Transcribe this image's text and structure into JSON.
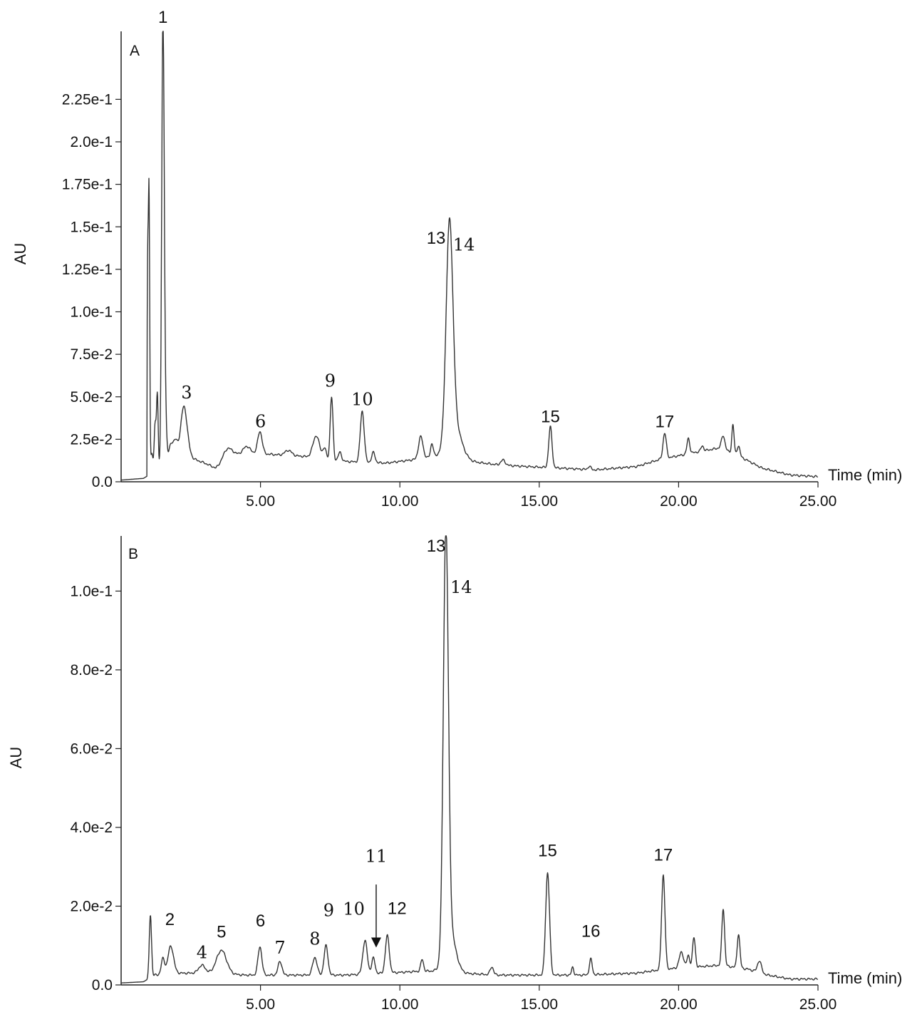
{
  "chart_data": [
    {
      "type": "line",
      "panel_label": "A",
      "ylabel": "AU",
      "xlabel": "Time (min)",
      "xlim": [
        0,
        25
      ],
      "ylim": [
        0,
        0.265
      ],
      "x_ticks": [
        5,
        10,
        15,
        20,
        25
      ],
      "x_tick_labels": [
        "5.00",
        "10.00",
        "15.00",
        "20.00",
        "25.00"
      ],
      "y_ticks": [
        0,
        0.025,
        0.05,
        0.075,
        0.1,
        0.125,
        0.15,
        0.175,
        0.2,
        0.225
      ],
      "y_tick_labels": [
        "0.0",
        "2.5e-2",
        "5.0e-2",
        "7.5e-2",
        "1.0e-1",
        "1.25e-1",
        "1.5e-1",
        "1.75e-1",
        "2.0e-1",
        "2.25e-1"
      ],
      "baseline": [
        [
          0,
          0.001
        ],
        [
          0.8,
          0.002
        ],
        [
          1.0,
          0.004
        ],
        [
          2.5,
          0.014
        ],
        [
          3.0,
          0.011
        ],
        [
          3.4,
          0.008
        ],
        [
          4.0,
          0.016
        ],
        [
          4.6,
          0.017
        ],
        [
          5.5,
          0.016
        ],
        [
          6.5,
          0.015
        ],
        [
          8.0,
          0.012
        ],
        [
          9.5,
          0.011
        ],
        [
          10.5,
          0.013
        ],
        [
          11.4,
          0.015
        ],
        [
          12.5,
          0.012
        ],
        [
          13.5,
          0.01
        ],
        [
          14.5,
          0.009
        ],
        [
          15.8,
          0.008
        ],
        [
          17.0,
          0.007
        ],
        [
          18.5,
          0.009
        ],
        [
          19.3,
          0.013
        ],
        [
          20.5,
          0.017
        ],
        [
          21.5,
          0.02
        ],
        [
          22.3,
          0.014
        ],
        [
          23.0,
          0.008
        ],
        [
          24.0,
          0.004
        ],
        [
          25.0,
          0.003
        ]
      ],
      "peaks": [
        {
          "t": 0.95,
          "h": 0.11,
          "w": 0.02
        },
        {
          "t": 1.0,
          "h": 0.168,
          "w": 0.025
        },
        {
          "t": 1.1,
          "h": 0.012,
          "w": 0.04
        },
        {
          "t": 1.22,
          "h": 0.028,
          "w": 0.035
        },
        {
          "t": 1.3,
          "h": 0.045,
          "w": 0.03
        },
        {
          "t": 1.5,
          "h": 0.26,
          "w": 0.045
        },
        {
          "t": 1.58,
          "h": 0.03,
          "w": 0.05
        },
        {
          "t": 1.78,
          "h": 0.012,
          "w": 0.08
        },
        {
          "t": 1.95,
          "h": 0.012,
          "w": 0.08
        },
        {
          "t": 2.25,
          "h": 0.032,
          "w": 0.12
        },
        {
          "t": 3.8,
          "h": 0.006,
          "w": 0.15
        },
        {
          "t": 4.5,
          "h": 0.004,
          "w": 0.12
        },
        {
          "t": 4.98,
          "h": 0.013,
          "w": 0.08
        },
        {
          "t": 6.0,
          "h": 0.003,
          "w": 0.12
        },
        {
          "t": 7.0,
          "h": 0.013,
          "w": 0.12
        },
        {
          "t": 7.3,
          "h": 0.006,
          "w": 0.06
        },
        {
          "t": 7.55,
          "h": 0.037,
          "w": 0.05
        },
        {
          "t": 7.85,
          "h": 0.005,
          "w": 0.06
        },
        {
          "t": 8.65,
          "h": 0.03,
          "w": 0.07
        },
        {
          "t": 9.05,
          "h": 0.006,
          "w": 0.06
        },
        {
          "t": 10.75,
          "h": 0.013,
          "w": 0.08
        },
        {
          "t": 11.15,
          "h": 0.008,
          "w": 0.05
        },
        {
          "t": 11.78,
          "h": 0.125,
          "w": 0.12
        },
        {
          "t": 11.95,
          "h": 0.02,
          "w": 0.25
        },
        {
          "t": 13.7,
          "h": 0.003,
          "w": 0.08
        },
        {
          "t": 15.4,
          "h": 0.024,
          "w": 0.06
        },
        {
          "t": 16.8,
          "h": 0.002,
          "w": 0.05
        },
        {
          "t": 19.5,
          "h": 0.015,
          "w": 0.06
        },
        {
          "t": 20.35,
          "h": 0.009,
          "w": 0.05
        },
        {
          "t": 20.85,
          "h": 0.003,
          "w": 0.05
        },
        {
          "t": 21.6,
          "h": 0.008,
          "w": 0.06
        },
        {
          "t": 21.95,
          "h": 0.017,
          "w": 0.04
        },
        {
          "t": 22.15,
          "h": 0.006,
          "w": 0.05
        }
      ],
      "annotations": [
        {
          "text": "1",
          "t": 1.5,
          "y": 0.27,
          "font": "sans"
        },
        {
          "text": "3",
          "t": 2.35,
          "y": 0.049,
          "font": "serif"
        },
        {
          "text": "6",
          "t": 5.0,
          "y": 0.032,
          "font": "serif"
        },
        {
          "text": "9",
          "t": 7.5,
          "y": 0.056,
          "font": "serif"
        },
        {
          "text": "10",
          "t": 8.65,
          "y": 0.045,
          "font": "serif"
        },
        {
          "text": "13",
          "t": 11.3,
          "y": 0.14,
          "font": "sans"
        },
        {
          "text": "14",
          "t": 12.3,
          "y": 0.136,
          "font": "serif"
        },
        {
          "text": "15",
          "t": 15.4,
          "y": 0.035,
          "font": "sans"
        },
        {
          "text": "17",
          "t": 19.5,
          "y": 0.032,
          "font": "sans"
        }
      ]
    },
    {
      "type": "line",
      "panel_label": "B",
      "ylabel": "AU",
      "xlabel": "Time (min)",
      "xlim": [
        0,
        25
      ],
      "ylim": [
        0,
        0.114
      ],
      "x_ticks": [
        5,
        10,
        15,
        20,
        25
      ],
      "x_tick_labels": [
        "5.00",
        "10.00",
        "15.00",
        "20.00",
        "25.00"
      ],
      "y_ticks": [
        0,
        0.02,
        0.04,
        0.06,
        0.08,
        0.1
      ],
      "y_tick_labels": [
        "0.0",
        "2.0e-2",
        "4.0e-2",
        "6.0e-2",
        "8.0e-2",
        "1.0e-1"
      ],
      "baseline": [
        [
          0,
          0.0005
        ],
        [
          0.8,
          0.0008
        ],
        [
          1.2,
          0.0025
        ],
        [
          2.0,
          0.003
        ],
        [
          3.0,
          0.003
        ],
        [
          4.5,
          0.0025
        ],
        [
          6.0,
          0.0025
        ],
        [
          8.0,
          0.0025
        ],
        [
          9.5,
          0.003
        ],
        [
          10.8,
          0.0035
        ],
        [
          11.4,
          0.0035
        ],
        [
          12.2,
          0.003
        ],
        [
          13.5,
          0.0025
        ],
        [
          15.0,
          0.0025
        ],
        [
          16.5,
          0.0025
        ],
        [
          18.5,
          0.003
        ],
        [
          19.5,
          0.004
        ],
        [
          20.5,
          0.0045
        ],
        [
          21.5,
          0.005
        ],
        [
          22.5,
          0.004
        ],
        [
          23.2,
          0.0025
        ],
        [
          24.0,
          0.0015
        ],
        [
          25.0,
          0.0015
        ]
      ],
      "peaks": [
        {
          "t": 1.05,
          "h": 0.016,
          "w": 0.04
        },
        {
          "t": 1.5,
          "h": 0.004,
          "w": 0.06
        },
        {
          "t": 1.78,
          "h": 0.007,
          "w": 0.1
        },
        {
          "t": 2.9,
          "h": 0.002,
          "w": 0.12
        },
        {
          "t": 3.6,
          "h": 0.006,
          "w": 0.18
        },
        {
          "t": 4.98,
          "h": 0.0072,
          "w": 0.07
        },
        {
          "t": 5.7,
          "h": 0.0035,
          "w": 0.07
        },
        {
          "t": 6.95,
          "h": 0.0045,
          "w": 0.08
        },
        {
          "t": 7.35,
          "h": 0.0075,
          "w": 0.07
        },
        {
          "t": 8.75,
          "h": 0.0085,
          "w": 0.08
        },
        {
          "t": 9.05,
          "h": 0.004,
          "w": 0.06
        },
        {
          "t": 9.55,
          "h": 0.0095,
          "w": 0.07
        },
        {
          "t": 10.8,
          "h": 0.003,
          "w": 0.05
        },
        {
          "t": 11.65,
          "h": 0.106,
          "w": 0.09
        },
        {
          "t": 11.8,
          "h": 0.01,
          "w": 0.2
        },
        {
          "t": 13.3,
          "h": 0.002,
          "w": 0.06
        },
        {
          "t": 15.3,
          "h": 0.026,
          "w": 0.07
        },
        {
          "t": 16.2,
          "h": 0.002,
          "w": 0.04
        },
        {
          "t": 16.85,
          "h": 0.004,
          "w": 0.05
        },
        {
          "t": 19.45,
          "h": 0.024,
          "w": 0.06
        },
        {
          "t": 20.1,
          "h": 0.004,
          "w": 0.08
        },
        {
          "t": 20.35,
          "h": 0.003,
          "w": 0.05
        },
        {
          "t": 20.55,
          "h": 0.0075,
          "w": 0.05
        },
        {
          "t": 21.6,
          "h": 0.0145,
          "w": 0.05
        },
        {
          "t": 22.15,
          "h": 0.0085,
          "w": 0.05
        },
        {
          "t": 22.9,
          "h": 0.003,
          "w": 0.07
        }
      ],
      "annotations": [
        {
          "text": "2",
          "t": 1.75,
          "y": 0.0152,
          "font": "sans"
        },
        {
          "text": "4",
          "t": 2.9,
          "y": 0.0068,
          "font": "serif"
        },
        {
          "text": "5",
          "t": 3.6,
          "y": 0.012,
          "font": "sans"
        },
        {
          "text": "6",
          "t": 5.0,
          "y": 0.0148,
          "font": "sans"
        },
        {
          "text": "7",
          "t": 5.7,
          "y": 0.008,
          "font": "serif"
        },
        {
          "text": "8",
          "t": 6.95,
          "y": 0.0102,
          "font": "serif"
        },
        {
          "text": "9",
          "t": 7.45,
          "y": 0.0175,
          "font": "serif"
        },
        {
          "text": "10",
          "t": 8.35,
          "y": 0.0178,
          "font": "serif"
        },
        {
          "text": "11",
          "t": 9.15,
          "y": 0.0312,
          "font": "serif"
        },
        {
          "text": "12",
          "t": 9.9,
          "y": 0.018,
          "font": "sans"
        },
        {
          "text": "13",
          "t": 11.3,
          "y": 0.11,
          "font": "sans"
        },
        {
          "text": "14",
          "t": 12.2,
          "y": 0.0995,
          "font": "serif"
        },
        {
          "text": "15",
          "t": 15.3,
          "y": 0.0327,
          "font": "sans"
        },
        {
          "text": "16",
          "t": 16.85,
          "y": 0.0122,
          "font": "sans"
        },
        {
          "text": "17",
          "t": 19.45,
          "y": 0.0316,
          "font": "sans"
        }
      ],
      "arrows": [
        {
          "t": 9.15,
          "y_from": 0.0255,
          "y_to": 0.0095
        }
      ]
    }
  ]
}
